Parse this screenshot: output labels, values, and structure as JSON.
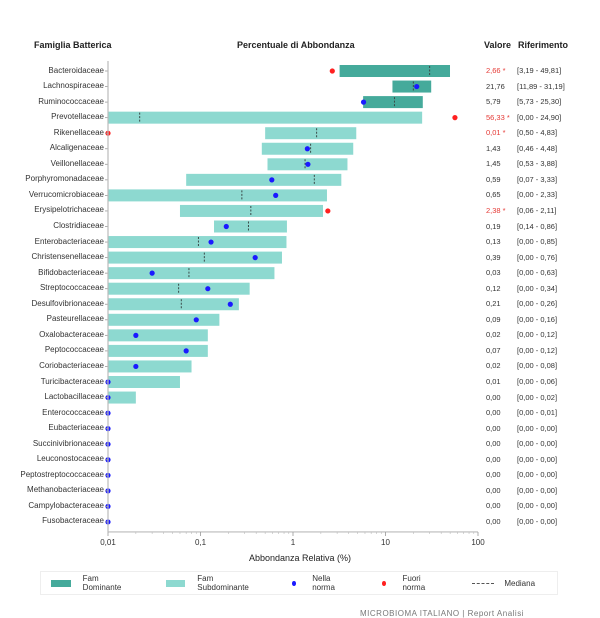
{
  "headers": {
    "family": "Famiglia Batterica",
    "percent": "Percentuale di Abbondanza",
    "value": "Valore",
    "reference": "Riferimento"
  },
  "colors": {
    "dominant": "#45aa9b",
    "subdominant": "#8dd9d0",
    "in_norm": "#1a1aff",
    "out_norm": "#ff2020",
    "out_text": "#e53935",
    "median": "#3a4a48"
  },
  "legend": {
    "dominant": "Fam Dominante",
    "subdominant": "Fam Subdominante",
    "in_norm": "Nella norma",
    "out_norm": "Fuori norma",
    "median": "Mediana"
  },
  "footer": "MICROBIOMA ITALIANO | Report Analisi",
  "chart_data": {
    "type": "bar",
    "orientation": "horizontal-range",
    "title": "Percentuale di Abbondanza",
    "xlabel": "Abbondanza Relativa (%)",
    "xscale": "log",
    "xlim": [
      0.01,
      100
    ],
    "xticks": [
      "0,01",
      "0,1",
      "1",
      "10",
      "100"
    ],
    "xtick_values": [
      0.01,
      0.1,
      1,
      10,
      100
    ],
    "rows": [
      {
        "family": "Bacteroidaceae",
        "value": 2.66,
        "value_text": "2,66 *",
        "out": true,
        "range_text": "[3,19 - 49,81]",
        "low": 3.19,
        "high": 49.81,
        "median": 30,
        "dominant": true
      },
      {
        "family": "Lachnospiraceae",
        "value": 21.76,
        "value_text": "21,76",
        "out": false,
        "range_text": "[11,89 - 31,19]",
        "low": 11.89,
        "high": 31.19,
        "median": 20,
        "dominant": true
      },
      {
        "family": "Ruminococcaceae",
        "value": 5.79,
        "value_text": "5,79",
        "out": false,
        "range_text": "[5,73 - 25,30]",
        "low": 5.73,
        "high": 25.3,
        "median": 12.5,
        "dominant": true
      },
      {
        "family": "Prevotellaceae",
        "value": 56.33,
        "value_text": "56,33 *",
        "out": true,
        "range_text": "[0,00 - 24,90]",
        "low": 0,
        "high": 24.9,
        "median": 0.022,
        "dominant": false
      },
      {
        "family": "Rikenellaceae",
        "value": 0.01,
        "value_text": "0,01 *",
        "out": true,
        "range_text": "[0,50 - 4,83]",
        "low": 0.5,
        "high": 4.83,
        "median": 1.8,
        "dominant": false
      },
      {
        "family": "Alcaligenaceae",
        "value": 1.43,
        "value_text": "1,43",
        "out": false,
        "range_text": "[0,46 - 4,48]",
        "low": 0.46,
        "high": 4.48,
        "median": 1.55,
        "dominant": false
      },
      {
        "family": "Veillonellaceae",
        "value": 1.45,
        "value_text": "1,45",
        "out": false,
        "range_text": "[0,53 - 3,88]",
        "low": 0.53,
        "high": 3.88,
        "median": 1.35,
        "dominant": false
      },
      {
        "family": "Porphyromonadaceae",
        "value": 0.59,
        "value_text": "0,59",
        "out": false,
        "range_text": "[0,07 - 3,33]",
        "low": 0.07,
        "high": 3.33,
        "median": 1.7,
        "dominant": false
      },
      {
        "family": "Verrucomicrobiaceae",
        "value": 0.65,
        "value_text": "0,65",
        "out": false,
        "range_text": "[0,00 - 2,33]",
        "low": 0,
        "high": 2.33,
        "median": 0.28,
        "dominant": false
      },
      {
        "family": "Erysipelotrichaceae",
        "value": 2.38,
        "value_text": "2,38 *",
        "out": true,
        "range_text": "[0,06 - 2,11]",
        "low": 0.06,
        "high": 2.11,
        "median": 0.35,
        "dominant": false
      },
      {
        "family": "Clostridiaceae",
        "value": 0.19,
        "value_text": "0,19",
        "out": false,
        "range_text": "[0,14 - 0,86]",
        "low": 0.14,
        "high": 0.86,
        "median": 0.33,
        "dominant": false
      },
      {
        "family": "Enterobacteriaceae",
        "value": 0.13,
        "value_text": "0,13",
        "out": false,
        "range_text": "[0,00 - 0,85]",
        "low": 0,
        "high": 0.85,
        "median": 0.095,
        "dominant": false
      },
      {
        "family": "Christensenellaceae",
        "value": 0.39,
        "value_text": "0,39",
        "out": false,
        "range_text": "[0,00 - 0,76]",
        "low": 0,
        "high": 0.76,
        "median": 0.11,
        "dominant": false
      },
      {
        "family": "Bifidobacteriaceae",
        "value": 0.03,
        "value_text": "0,03",
        "out": false,
        "range_text": "[0,00 - 0,63]",
        "low": 0,
        "high": 0.63,
        "median": 0.075,
        "dominant": false
      },
      {
        "family": "Streptococcaceae",
        "value": 0.12,
        "value_text": "0,12",
        "out": false,
        "range_text": "[0,00 - 0,34]",
        "low": 0,
        "high": 0.34,
        "median": 0.058,
        "dominant": false
      },
      {
        "family": "Desulfovibrionaceae",
        "value": 0.21,
        "value_text": "0,21",
        "out": false,
        "range_text": "[0,00 - 0,26]",
        "low": 0,
        "high": 0.26,
        "median": 0.062,
        "dominant": false
      },
      {
        "family": "Pasteurellaceae",
        "value": 0.09,
        "value_text": "0,09",
        "out": false,
        "range_text": "[0,00 - 0,16]",
        "low": 0,
        "high": 0.16,
        "median": null,
        "dominant": false
      },
      {
        "family": "Oxalobacteraceae",
        "value": 0.02,
        "value_text": "0,02",
        "out": false,
        "range_text": "[0,00 - 0,12]",
        "low": 0,
        "high": 0.12,
        "median": null,
        "dominant": false
      },
      {
        "family": "Peptococcaceae",
        "value": 0.07,
        "value_text": "0,07",
        "out": false,
        "range_text": "[0,00 - 0,12]",
        "low": 0,
        "high": 0.12,
        "median": null,
        "dominant": false
      },
      {
        "family": "Coriobacteriaceae",
        "value": 0.02,
        "value_text": "0,02",
        "out": false,
        "range_text": "[0,00 - 0,08]",
        "low": 0,
        "high": 0.08,
        "median": null,
        "dominant": false
      },
      {
        "family": "Turicibacteraceae",
        "value": 0.01,
        "value_text": "0,01",
        "out": false,
        "range_text": "[0,00 - 0,06]",
        "low": 0,
        "high": 0.06,
        "median": null,
        "dominant": false
      },
      {
        "family": "Lactobacillaceae",
        "value": 0.0,
        "value_text": "0,00",
        "out": false,
        "range_text": "[0,00 - 0,02]",
        "low": 0,
        "high": 0.02,
        "median": null,
        "dominant": false
      },
      {
        "family": "Enterococcaceae",
        "value": 0.0,
        "value_text": "0,00",
        "out": false,
        "range_text": "[0,00 - 0,01]",
        "low": 0,
        "high": 0.01,
        "median": null,
        "dominant": false
      },
      {
        "family": "Eubacteriaceae",
        "value": 0.0,
        "value_text": "0,00",
        "out": false,
        "range_text": "[0,00 - 0,00]",
        "low": 0,
        "high": 0,
        "median": null,
        "dominant": false
      },
      {
        "family": "Succinivibrionaceae",
        "value": 0.0,
        "value_text": "0,00",
        "out": false,
        "range_text": "[0,00 - 0,00]",
        "low": 0,
        "high": 0,
        "median": null,
        "dominant": false
      },
      {
        "family": "Leuconostocaceae",
        "value": 0.0,
        "value_text": "0,00",
        "out": false,
        "range_text": "[0,00 - 0,00]",
        "low": 0,
        "high": 0,
        "median": null,
        "dominant": false
      },
      {
        "family": "Peptostreptococcaceae",
        "value": 0.0,
        "value_text": "0,00",
        "out": false,
        "range_text": "[0,00 - 0,00]",
        "low": 0,
        "high": 0,
        "median": null,
        "dominant": false
      },
      {
        "family": "Methanobacteriaceae",
        "value": 0.0,
        "value_text": "0,00",
        "out": false,
        "range_text": "[0,00 - 0,00]",
        "low": 0,
        "high": 0,
        "median": null,
        "dominant": false
      },
      {
        "family": "Campylobacteraceae",
        "value": 0.0,
        "value_text": "0,00",
        "out": false,
        "range_text": "[0,00 - 0,00]",
        "low": 0,
        "high": 0,
        "median": null,
        "dominant": false
      },
      {
        "family": "Fusobacteraceae",
        "value": 0.0,
        "value_text": "0,00",
        "out": false,
        "range_text": "[0,00 - 0,00]",
        "low": 0,
        "high": 0,
        "median": null,
        "dominant": false
      }
    ]
  }
}
